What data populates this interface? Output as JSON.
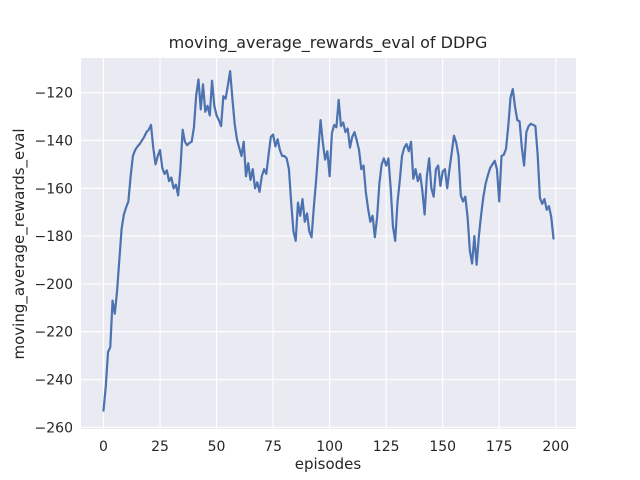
{
  "title": "moving_average_rewards_eval of DDPG",
  "axes": {
    "xlabel": "episodes",
    "ylabel": "moving_average_rewards_eval",
    "xticks": [
      0,
      25,
      50,
      75,
      100,
      125,
      150,
      175,
      200
    ],
    "yticks": [
      -120,
      -140,
      -160,
      -180,
      -200,
      -220,
      -240,
      -260
    ],
    "background_color": "#eaeaf2",
    "grid_color": "#ffffff",
    "text_color": "#262626"
  },
  "chart_data": {
    "type": "line",
    "title": "moving_average_rewards_eval of DDPG",
    "xlabel": "episodes",
    "ylabel": "moving_average_rewards_eval",
    "grid": true,
    "legend": false,
    "xlim": [
      -9.95,
      208.95
    ],
    "ylim": [
      -260.7,
      -105.5
    ],
    "series": [
      {
        "name": "moving_average_rewards_eval",
        "color": "#4c72b0",
        "line_width": 2.2,
        "x_start": 0,
        "x_step": 1,
        "values": [
          -253,
          -243,
          -228.5,
          -226.5,
          -207,
          -212.5,
          -203,
          -190,
          -177,
          -171,
          -168,
          -165.5,
          -155,
          -146.5,
          -144,
          -142.5,
          -141.5,
          -140,
          -138.5,
          -136.5,
          -135.5,
          -133.5,
          -143,
          -150,
          -146.5,
          -144,
          -151.5,
          -154,
          -152.5,
          -157,
          -155.5,
          -160,
          -158.5,
          -163,
          -152,
          -135.5,
          -140.5,
          -142,
          -141,
          -140.5,
          -134.5,
          -121,
          -114.5,
          -127,
          -116.5,
          -128,
          -125.5,
          -129.5,
          -115,
          -125.5,
          -129.5,
          -131.5,
          -134,
          -121.5,
          -122.5,
          -117,
          -111,
          -122.5,
          -133,
          -139.5,
          -143,
          -146.5,
          -140.5,
          -155,
          -149.5,
          -156.5,
          -152,
          -160,
          -157.5,
          -161.5,
          -155,
          -152,
          -154,
          -146,
          -138.5,
          -137.5,
          -142.5,
          -139.5,
          -144,
          -146.5,
          -146.5,
          -147.5,
          -152,
          -166,
          -178,
          -182,
          -166,
          -171.5,
          -164.5,
          -174,
          -170.5,
          -178,
          -180.5,
          -168,
          -157,
          -144,
          -131.5,
          -141,
          -148,
          -144.5,
          -155,
          -137,
          -133.5,
          -134.5,
          -123,
          -134,
          -132.5,
          -136.5,
          -135,
          -143,
          -138.5,
          -136.5,
          -140,
          -144,
          -152,
          -150.5,
          -161.5,
          -168.5,
          -174,
          -171.5,
          -180.5,
          -172,
          -158,
          -150,
          -147.5,
          -150.5,
          -147.5,
          -160,
          -176,
          -182,
          -166,
          -157,
          -146.5,
          -143,
          -141.5,
          -144.5,
          -140.5,
          -156,
          -152,
          -157,
          -154,
          -161,
          -171,
          -155,
          -147.5,
          -160,
          -163.5,
          -152,
          -150.5,
          -159,
          -153,
          -152,
          -160,
          -152,
          -145,
          -138,
          -141,
          -146.5,
          -163,
          -165.5,
          -163.5,
          -172,
          -186,
          -191.5,
          -180,
          -192,
          -180,
          -171,
          -163.5,
          -158,
          -154.5,
          -151.5,
          -150,
          -148.5,
          -152,
          -165.5,
          -146.5,
          -146,
          -143.5,
          -134,
          -122,
          -118.5,
          -126,
          -131.5,
          -132,
          -143,
          -150.5,
          -136.5,
          -134,
          -133,
          -133.5,
          -134,
          -146,
          -164,
          -166.5,
          -164.5,
          -169,
          -167.5,
          -172,
          -181
        ]
      }
    ]
  }
}
